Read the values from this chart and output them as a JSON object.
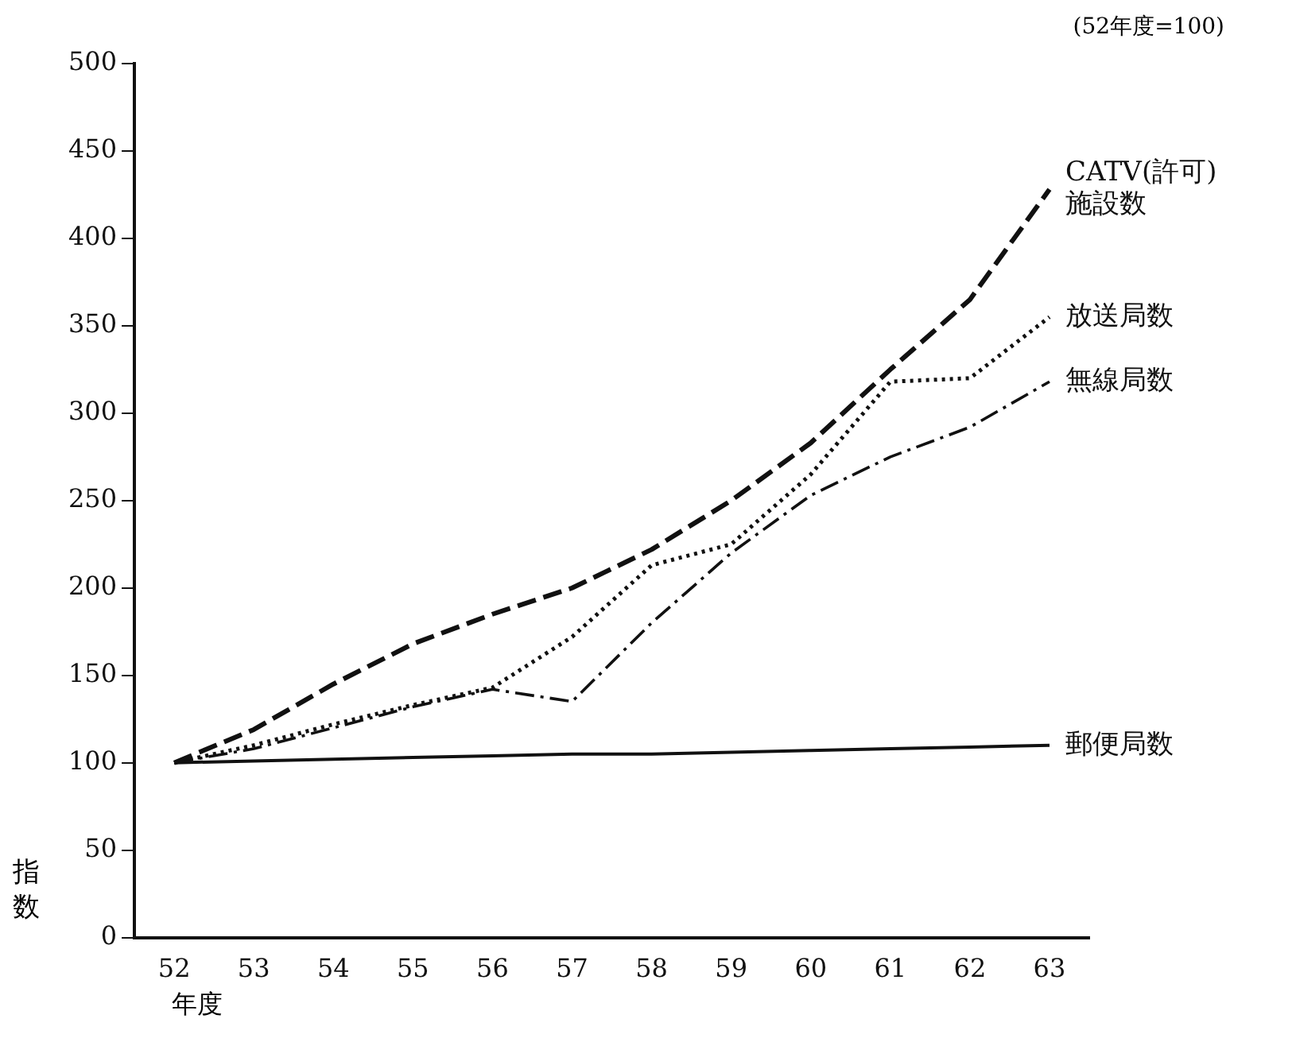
{
  "chart_data": {
    "type": "line",
    "xlabel": "年度",
    "ylabel": "指数",
    "annotations": [
      "(52年度=100)"
    ],
    "categories": [
      "52",
      "53",
      "54",
      "55",
      "56",
      "57",
      "58",
      "59",
      "60",
      "61",
      "62",
      "63"
    ],
    "series": [
      {
        "name": "CATV(許可)施設数",
        "color": "#111111",
        "line_style": "dashed",
        "values": [
          100,
          119,
          145,
          168,
          185,
          200,
          222,
          250,
          283,
          325,
          365,
          428
        ]
      },
      {
        "name": "放送局数",
        "color": "#111111",
        "line_style": "dotted",
        "values": [
          100,
          110,
          122,
          133,
          143,
          172,
          213,
          225,
          265,
          318,
          320,
          355
        ]
      },
      {
        "name": "無線局数",
        "color": "#111111",
        "line_style": "dashdot",
        "values": [
          100,
          108,
          120,
          132,
          142,
          135,
          180,
          220,
          253,
          275,
          292,
          318
        ]
      },
      {
        "name": "郵便局数",
        "color": "#111111",
        "line_style": "solid",
        "values": [
          100,
          101,
          102,
          103,
          104,
          105,
          105,
          106,
          107,
          108,
          109,
          110
        ]
      }
    ],
    "ylim": [
      0,
      500
    ],
    "yticks": [
      0,
      50,
      100,
      150,
      200,
      250,
      300,
      350,
      400,
      450,
      500
    ],
    "grid": false,
    "legend": false,
    "marker": "none"
  }
}
